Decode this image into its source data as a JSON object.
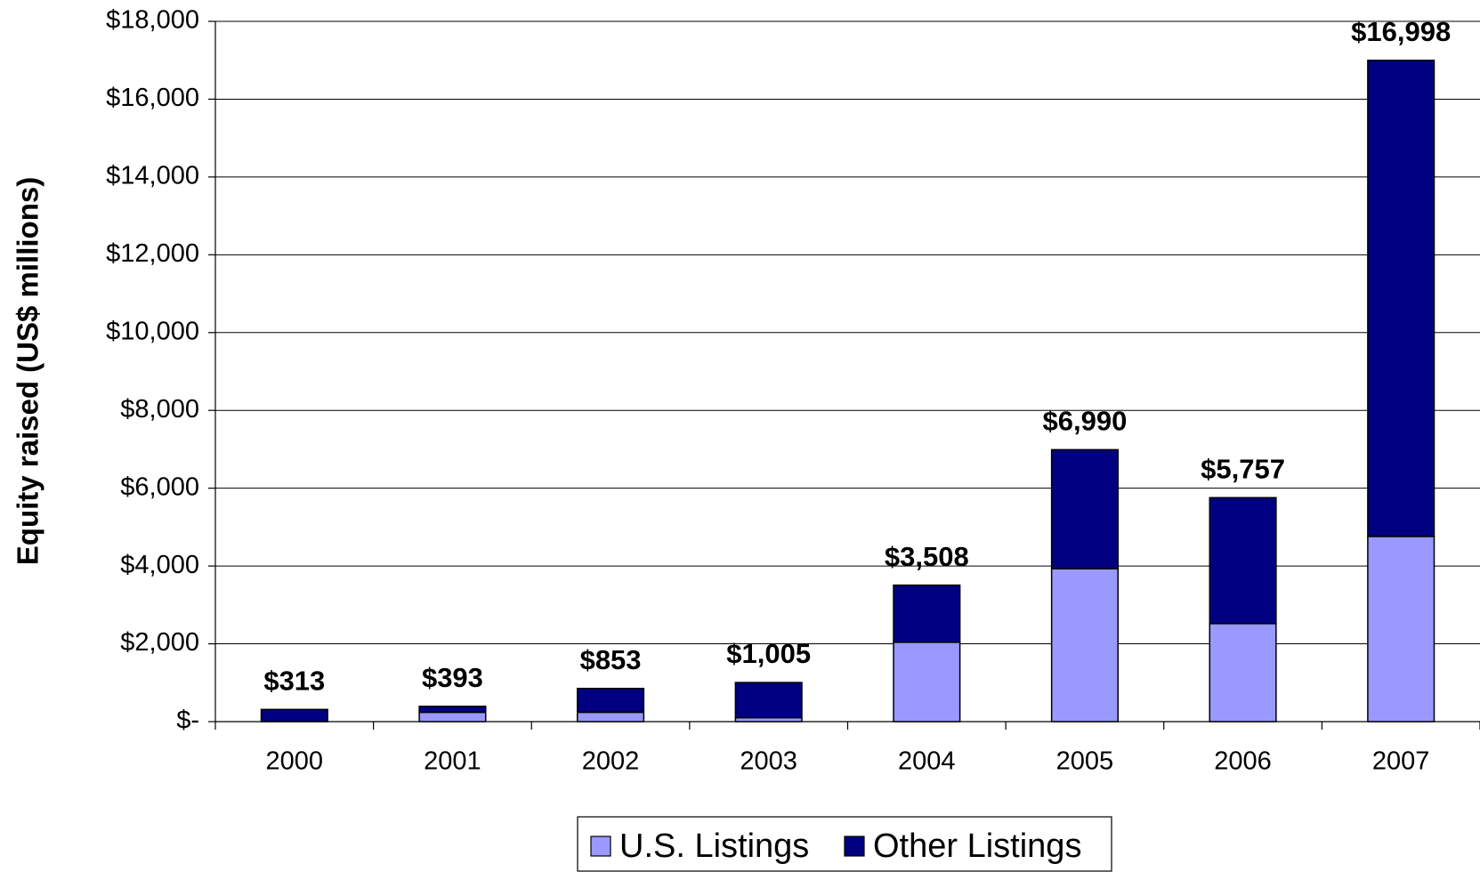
{
  "chart_data": {
    "type": "stacked_bar",
    "y_label": "Equity raised (US$ millions)",
    "categories": [
      "2000",
      "2001",
      "2002",
      "2003",
      "2004",
      "2005",
      "2006",
      "2007"
    ],
    "series": [
      {
        "name": "U.S. Listings",
        "color": "#9999ff",
        "values": [
          0,
          240,
          240,
          100,
          2040,
          3930,
          2520,
          4760
        ]
      },
      {
        "name": "Other Listings",
        "color": "#000080",
        "values": [
          313,
          153,
          613,
          905,
          1468,
          3060,
          3237,
          12238
        ]
      }
    ],
    "totals": [
      313,
      393,
      853,
      1005,
      3508,
      6990,
      5757,
      16998
    ],
    "total_labels": [
      "$313",
      "$393",
      "$853",
      "$1,005",
      "$3,508",
      "$6,990",
      "$5,757",
      "$16,998"
    ],
    "ylim": [
      0,
      18000
    ],
    "yticks": [
      {
        "value": 0,
        "label": "$-"
      },
      {
        "value": 2000,
        "label": "$2,000"
      },
      {
        "value": 4000,
        "label": "$4,000"
      },
      {
        "value": 6000,
        "label": "$6,000"
      },
      {
        "value": 8000,
        "label": "$8,000"
      },
      {
        "value": 10000,
        "label": "$10,000"
      },
      {
        "value": 12000,
        "label": "$12,000"
      },
      {
        "value": 14000,
        "label": "$14,000"
      },
      {
        "value": 16000,
        "label": "$16,000"
      },
      {
        "value": 18000,
        "label": "$18,000"
      }
    ],
    "grid": true,
    "legend": "bottom"
  }
}
